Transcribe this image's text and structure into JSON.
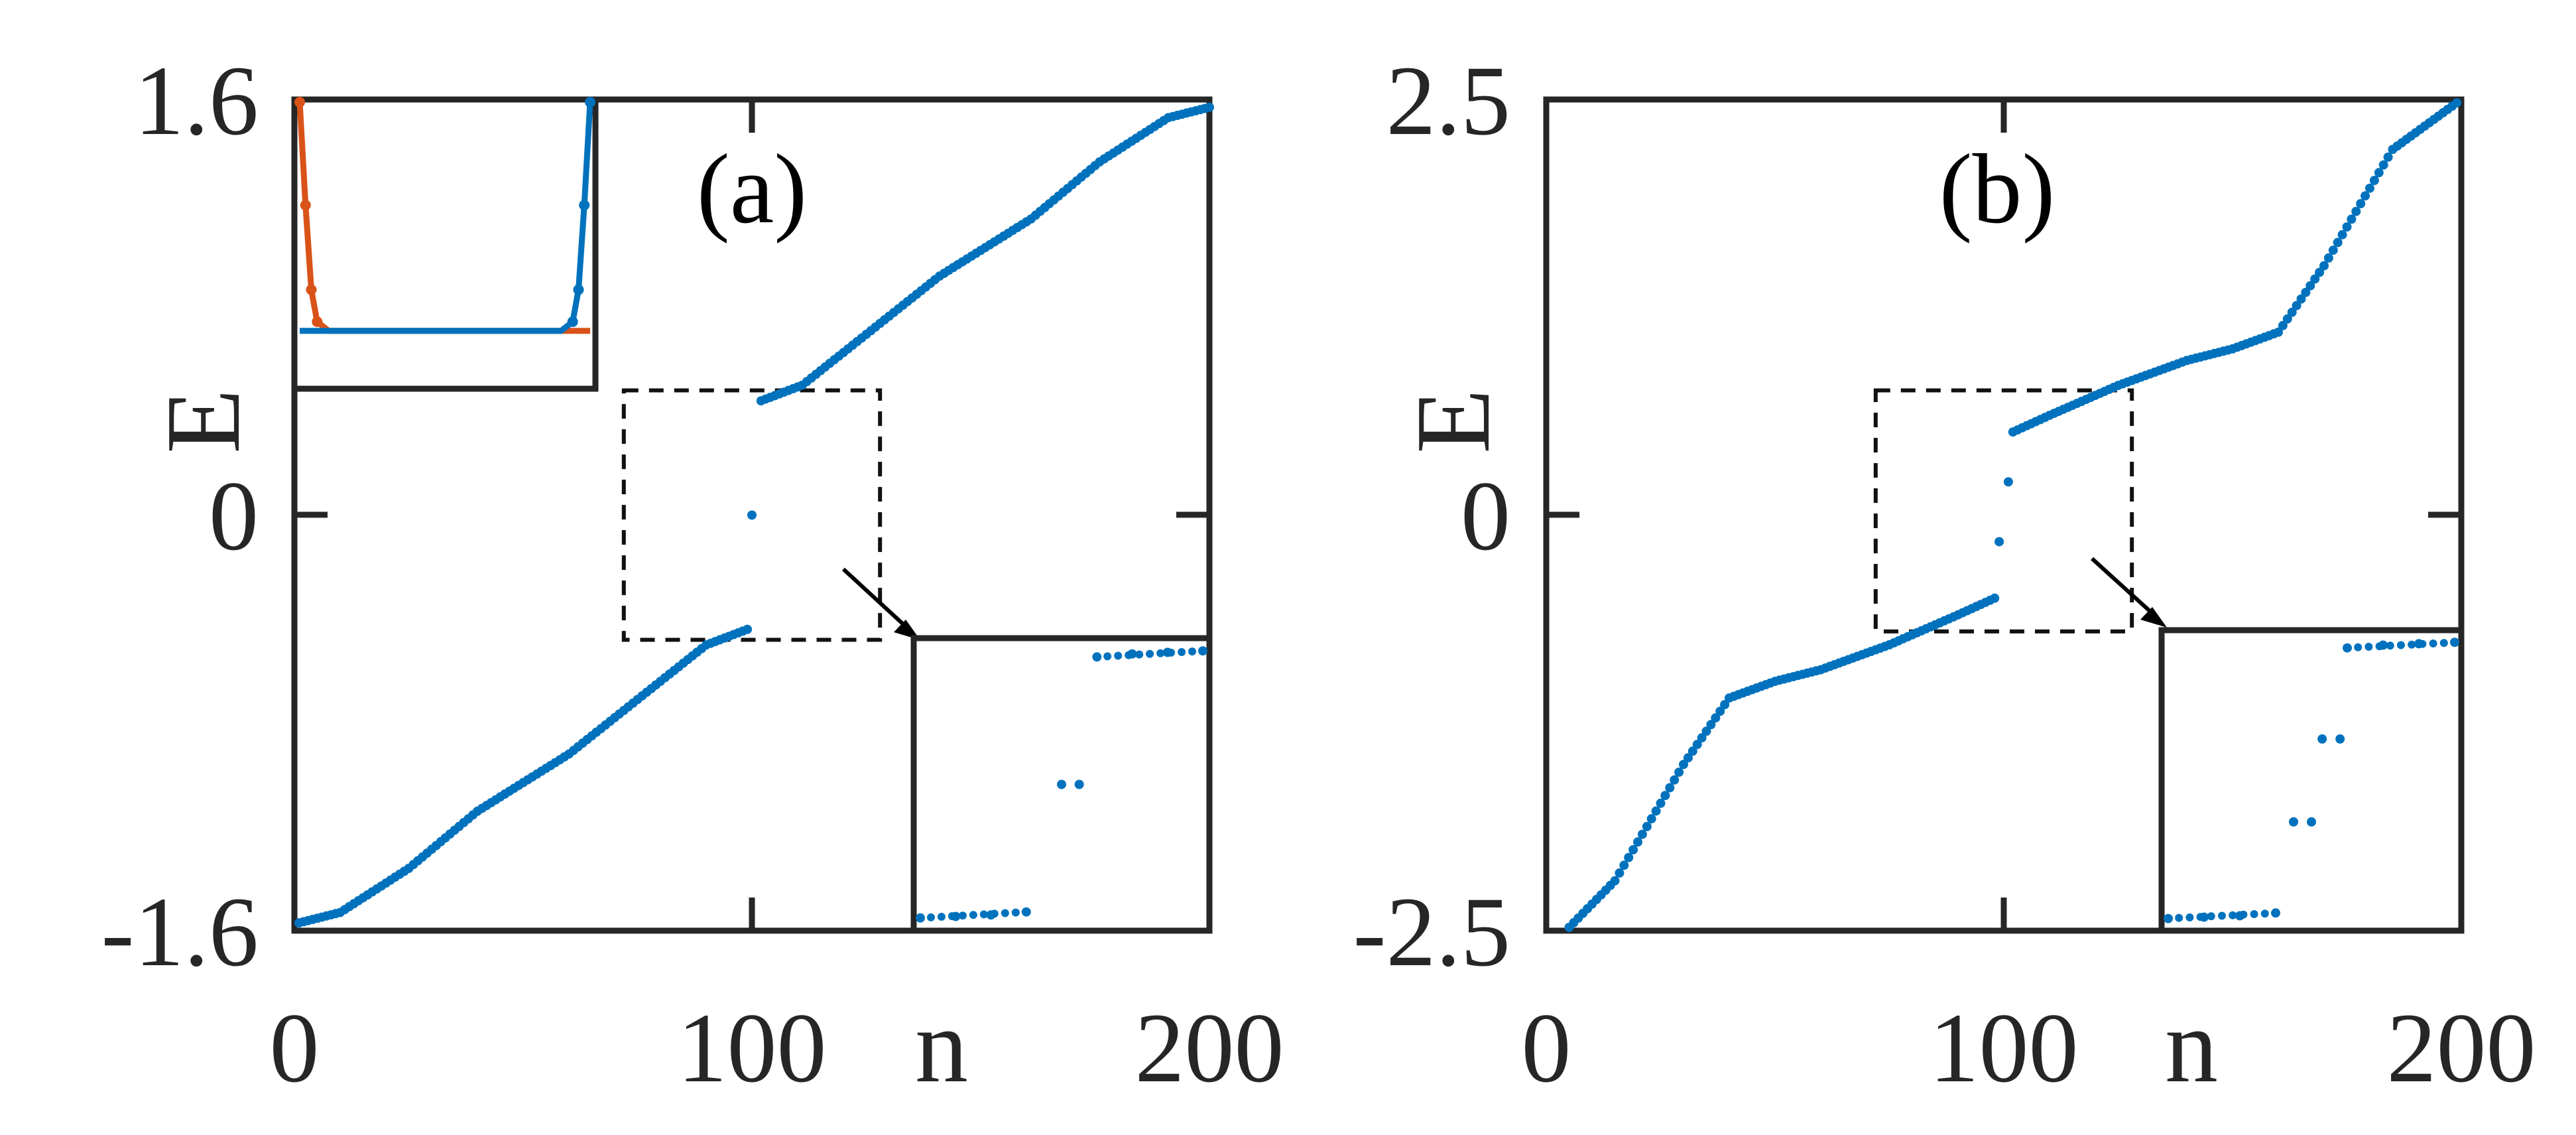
{
  "colors": {
    "series_blue": "#0072BD",
    "series_orange": "#D95319",
    "axis": "#262626"
  },
  "chart_data": [
    {
      "type": "scatter",
      "panel_label": "(a)",
      "xlabel": "n",
      "ylabel": "E",
      "xlim": [
        0,
        200
      ],
      "ylim": [
        -1.6,
        1.6
      ],
      "xticks": [
        "0",
        "100",
        "200"
      ],
      "yticks": [
        "-1.6",
        "0",
        "1.6"
      ],
      "grid": false,
      "n_points": 200,
      "zero_modes": [
        {
          "n": 100,
          "E": 0
        }
      ],
      "spectrum_samples": {
        "n": [
          1,
          10,
          25,
          40,
          50,
          60,
          75,
          90,
          99,
          102,
          111,
          126,
          141,
          151,
          161,
          176,
          191,
          200
        ],
        "E": [
          -1.57,
          -1.53,
          -1.36,
          -1.14,
          -1.03,
          -0.92,
          -0.71,
          -0.5,
          -0.44,
          0.44,
          0.5,
          0.71,
          0.92,
          1.03,
          1.14,
          1.36,
          1.53,
          1.57
        ]
      },
      "dashed_box": {
        "n": [
          72,
          128
        ],
        "E": [
          -0.48,
          0.48
        ]
      },
      "inset_eigenstate": {
        "series": [
          {
            "name": "",
            "color": "orange",
            "site_x": [
              0,
              0.02,
              0.04,
              0.06,
              0.1,
              0.5,
              0.9,
              0.96,
              0.98,
              1.0
            ],
            "amp": [
              1.0,
              0.55,
              0.18,
              0.04,
              0.0,
              0.0,
              0.0,
              0.0,
              0.0,
              0.0
            ]
          },
          {
            "name": "",
            "color": "blue",
            "site_x": [
              0,
              0.02,
              0.04,
              0.1,
              0.5,
              0.9,
              0.94,
              0.96,
              0.98,
              1.0
            ],
            "amp": [
              0.0,
              0.0,
              0.0,
              0.0,
              0.0,
              0.0,
              0.04,
              0.18,
              0.55,
              1.0
            ]
          }
        ]
      },
      "inset_zoom": {
        "series": [
          {
            "n": [
              96,
              97,
              98,
              99
            ],
            "E": [
              -0.44,
              -0.435,
              -0.43,
              -0.42
            ]
          },
          {
            "n": [
              100,
              100.5
            ],
            "E": [
              0.0,
              0.0
            ]
          },
          {
            "n": [
              101,
              102,
              103,
              104
            ],
            "E": [
              0.42,
              0.43,
              0.435,
              0.44
            ]
          }
        ]
      }
    },
    {
      "type": "scatter",
      "panel_label": "(b)",
      "xlabel": "n",
      "ylabel": "E",
      "xlim": [
        0,
        200
      ],
      "ylim": [
        -2.5,
        2.5
      ],
      "xticks": [
        "0",
        "100",
        "200"
      ],
      "yticks": [
        "-2.5",
        "0",
        "2.5"
      ],
      "grid": false,
      "n_points": 200,
      "zero_modes": [
        {
          "n": 99,
          "E": -0.16
        },
        {
          "n": 101,
          "E": 0.2
        }
      ],
      "spectrum_samples": {
        "n": [
          5,
          15,
          30,
          40,
          50,
          60,
          75,
          90,
          98,
          102,
          110,
          125,
          140,
          150,
          160,
          170,
          185,
          199
        ],
        "E": [
          -2.48,
          -2.2,
          -1.5,
          -1.1,
          -1.0,
          -0.93,
          -0.78,
          -0.6,
          -0.5,
          0.5,
          0.6,
          0.78,
          0.93,
          1.0,
          1.1,
          1.5,
          2.2,
          2.48
        ]
      },
      "dashed_box": {
        "n": [
          72,
          128
        ],
        "E": [
          -0.7,
          0.75
        ]
      },
      "inset_zoom": {
        "series": [
          {
            "n": [
              96,
              97,
              98,
              99
            ],
            "E": [
              -0.5,
              -0.495,
              -0.49,
              -0.48
            ]
          },
          {
            "n": [
              99.5,
              100
            ],
            "E": [
              -0.15,
              -0.15
            ]
          },
          {
            "n": [
              100.3,
              100.8
            ],
            "E": [
              0.15,
              0.15
            ]
          },
          {
            "n": [
              101,
              102,
              103,
              104
            ],
            "E": [
              0.48,
              0.49,
              0.495,
              0.5
            ]
          }
        ]
      }
    }
  ]
}
